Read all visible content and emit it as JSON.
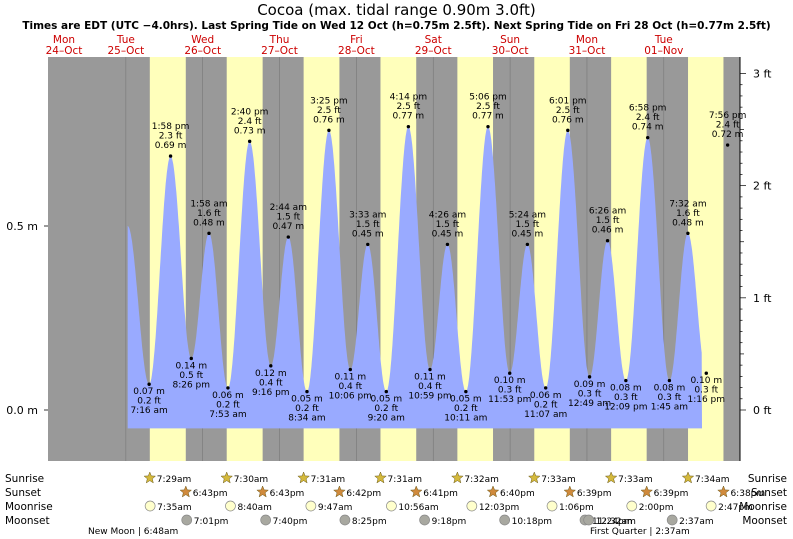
{
  "chart_data": {
    "type": "area",
    "title": "Cocoa (max. tidal range 0.90m 3.0ft)",
    "subtitle": "Times are EDT (UTC −4.0hrs). Last Spring Tide on Wed 12 Oct (h=0.75m 2.5ft). Next Spring Tide on Fri 28 Oct (h=0.77m 2.5ft)",
    "days": [
      {
        "dow": "Mon",
        "date": "24–Oct"
      },
      {
        "dow": "Tue",
        "date": "25–Oct"
      },
      {
        "dow": "Wed",
        "date": "26–Oct"
      },
      {
        "dow": "Thu",
        "date": "27–Oct"
      },
      {
        "dow": "Fri",
        "date": "28–Oct"
      },
      {
        "dow": "Sat",
        "date": "29–Oct"
      },
      {
        "dow": "Sun",
        "date": "30–Oct"
      },
      {
        "dow": "Mon",
        "date": "31–Oct"
      },
      {
        "dow": "Tue",
        "date": "01–Nov"
      }
    ],
    "y_left": {
      "unit": "m",
      "ticks": [
        {
          "v": 0.0,
          "label": "0.0 m"
        },
        {
          "v": 0.5,
          "label": "0.5 m"
        }
      ]
    },
    "y_right": {
      "unit": "ft",
      "ticks": [
        {
          "v": 0,
          "label": "0 ft"
        },
        {
          "v": 1,
          "label": "1 ft"
        },
        {
          "v": 2,
          "label": "2 ft"
        },
        {
          "v": 3,
          "label": "3 ft"
        }
      ]
    },
    "ylim_m": [
      -0.09,
      0.92
    ],
    "tides": [
      {
        "type": "low",
        "time": "7:16 am",
        "m": "0.07 m",
        "ft": "0.2 ft",
        "day": 1,
        "value": 0.07
      },
      {
        "type": "high",
        "time": "1:58 pm",
        "m": "0.69 m",
        "ft": "2.3 ft",
        "day": 1,
        "value": 0.69
      },
      {
        "type": "low",
        "time": "8:26 pm",
        "m": "0.14 m",
        "ft": "0.5 ft",
        "day": 1,
        "value": 0.14
      },
      {
        "type": "high",
        "time": "1:58 am",
        "m": "0.48 m",
        "ft": "1.6 ft",
        "day": 2,
        "value": 0.48
      },
      {
        "type": "low",
        "time": "7:53 am",
        "m": "0.06 m",
        "ft": "0.2 ft",
        "day": 2,
        "value": 0.06
      },
      {
        "type": "high",
        "time": "2:40 pm",
        "m": "0.73 m",
        "ft": "2.4 ft",
        "day": 2,
        "value": 0.73
      },
      {
        "type": "low",
        "time": "9:16 pm",
        "m": "0.12 m",
        "ft": "0.4 ft",
        "day": 2,
        "value": 0.12
      },
      {
        "type": "high",
        "time": "2:44 am",
        "m": "0.47 m",
        "ft": "1.5 ft",
        "day": 3,
        "value": 0.47
      },
      {
        "type": "low",
        "time": "8:34 am",
        "m": "0.05 m",
        "ft": "0.2 ft",
        "day": 3,
        "value": 0.05
      },
      {
        "type": "high",
        "time": "3:25 pm",
        "m": "0.76 m",
        "ft": "2.5 ft",
        "day": 3,
        "value": 0.76
      },
      {
        "type": "low",
        "time": "10:06 pm",
        "m": "0.11 m",
        "ft": "0.4 ft",
        "day": 3,
        "value": 0.11
      },
      {
        "type": "high",
        "time": "3:33 am",
        "m": "0.45 m",
        "ft": "1.5 ft",
        "day": 4,
        "value": 0.45
      },
      {
        "type": "low",
        "time": "9:20 am",
        "m": "0.05 m",
        "ft": "0.2 ft",
        "day": 4,
        "value": 0.05
      },
      {
        "type": "high",
        "time": "4:14 pm",
        "m": "0.77 m",
        "ft": "2.5 ft",
        "day": 4,
        "value": 0.77
      },
      {
        "type": "low",
        "time": "10:59 pm",
        "m": "0.11 m",
        "ft": "0.4 ft",
        "day": 4,
        "value": 0.11
      },
      {
        "type": "high",
        "time": "4:26 am",
        "m": "0.45 m",
        "ft": "1.5 ft",
        "day": 5,
        "value": 0.45
      },
      {
        "type": "low",
        "time": "10:11 am",
        "m": "0.05 m",
        "ft": "0.2 ft",
        "day": 5,
        "value": 0.05
      },
      {
        "type": "high",
        "time": "5:06 pm",
        "m": "0.77 m",
        "ft": "2.5 ft",
        "day": 5,
        "value": 0.77
      },
      {
        "type": "low",
        "time": "11:53 pm",
        "m": "0.10 m",
        "ft": "0.3 ft",
        "day": 5,
        "value": 0.1
      },
      {
        "type": "high",
        "time": "5:24 am",
        "m": "0.45 m",
        "ft": "1.5 ft",
        "day": 6,
        "value": 0.45
      },
      {
        "type": "low",
        "time": "11:07 am",
        "m": "0.06 m",
        "ft": "0.2 ft",
        "day": 6,
        "value": 0.06
      },
      {
        "type": "high",
        "time": "6:01 pm",
        "m": "0.76 m",
        "ft": "2.5 ft",
        "day": 6,
        "value": 0.76
      },
      {
        "type": "low",
        "time": "12:49 am",
        "m": "0.09 m",
        "ft": "0.3 ft",
        "day": 7,
        "value": 0.09
      },
      {
        "type": "high",
        "time": "6:26 am",
        "m": "0.46 m",
        "ft": "1.5 ft",
        "day": 7,
        "value": 0.46
      },
      {
        "type": "low",
        "time": "12:09 pm",
        "m": "0.08 m",
        "ft": "0.3 ft",
        "day": 7,
        "value": 0.08
      },
      {
        "type": "high",
        "time": "6:58 pm",
        "m": "0.74 m",
        "ft": "2.4 ft",
        "day": 7,
        "value": 0.74
      },
      {
        "type": "low",
        "time": "1:45 am",
        "m": "0.08 m",
        "ft": "0.3 ft",
        "day": 8,
        "value": 0.08
      },
      {
        "type": "high",
        "time": "7:32 am",
        "m": "0.48 m",
        "ft": "1.6 ft",
        "day": 8,
        "value": 0.48
      },
      {
        "type": "low",
        "time": "1:16 pm",
        "m": "0.10 m",
        "ft": "0.3 ft",
        "day": 8,
        "value": 0.1
      },
      {
        "type": "high",
        "time": "7:56 pm",
        "m": "0.72 m",
        "ft": "2.4 ft",
        "day": 8,
        "value": 0.72
      }
    ],
    "rows": {
      "sunrise": {
        "label": "Sunrise",
        "times": [
          "7:29am",
          "7:30am",
          "7:31am",
          "7:31am",
          "7:32am",
          "7:33am",
          "7:33am",
          "7:34am"
        ]
      },
      "sunset": {
        "label": "Sunset",
        "times": [
          "6:43pm",
          "6:43pm",
          "6:42pm",
          "6:41pm",
          "6:40pm",
          "6:39pm",
          "6:39pm",
          "6:38pm"
        ]
      },
      "moonrise": {
        "label": "Moonrise",
        "times": [
          "7:35am",
          "8:40am",
          "9:47am",
          "10:56am",
          "12:03pm",
          "1:06pm",
          "2:00pm",
          "2:47pm"
        ]
      },
      "moonset": {
        "label": "Moonset",
        "times": [
          "7:01pm",
          "7:40pm",
          "8:25pm",
          "9:18pm",
          "10:18pm",
          "11:24pm",
          "12:32am",
          "2:37am"
        ]
      }
    },
    "phases": [
      {
        "text": "New Moon | 6:48am"
      },
      {
        "text": "First Quarter | 2:37am"
      }
    ],
    "colors": {
      "night": "#999999",
      "day": "#ffffbb",
      "water": "#99aaff",
      "day_label": "#cc0000",
      "sun": "#d4b93c",
      "sunset": "#d08a3c",
      "moonrise": "#ffffcc",
      "moonset": "#a8a8a0"
    }
  }
}
